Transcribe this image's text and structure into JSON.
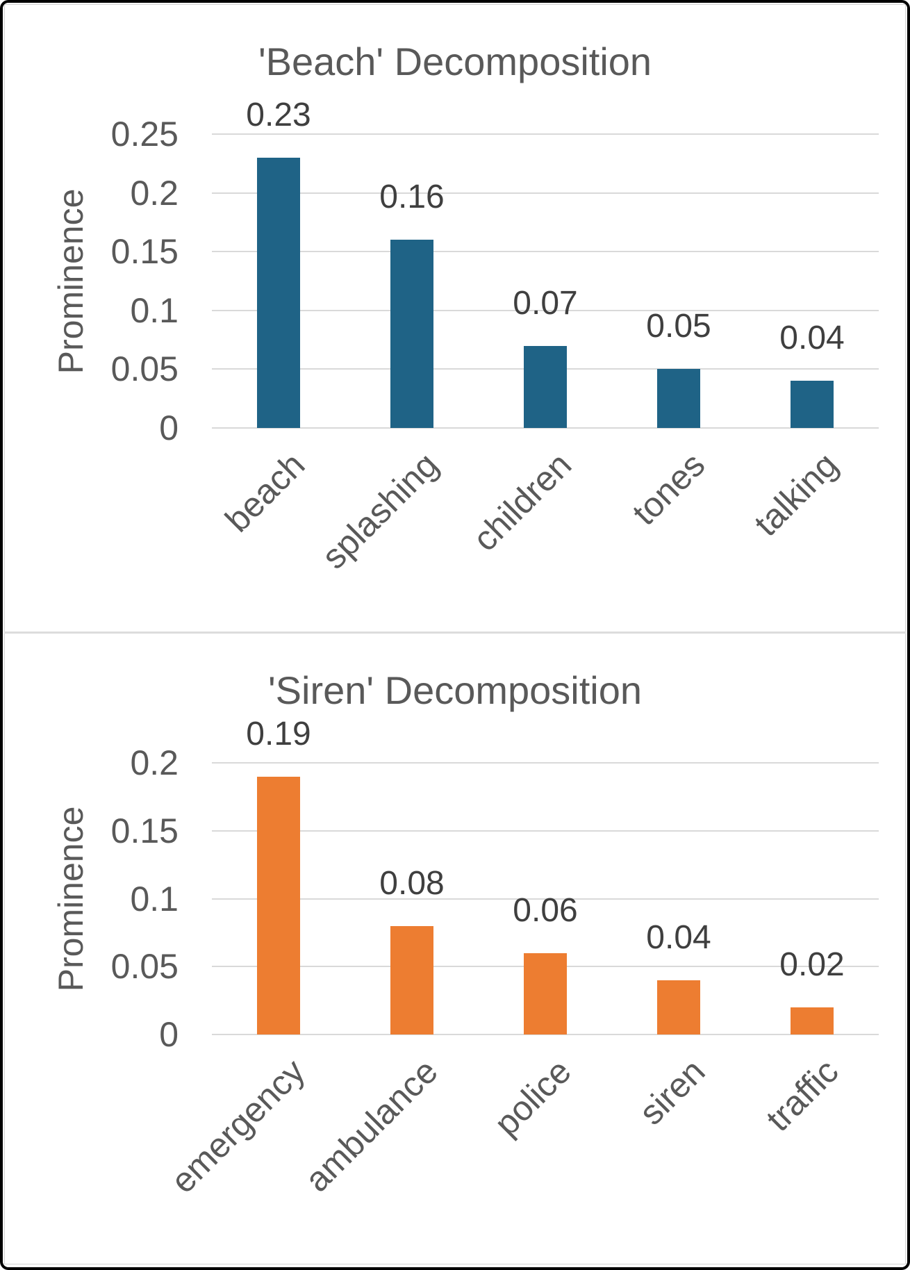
{
  "page": {
    "background": "#ffffff",
    "frame_color": "#000000",
    "panel_border_color": "#d4d4d4",
    "divider_color": "#dcdcdc"
  },
  "style": {
    "title_color": "#595959",
    "tick_color": "#595959",
    "data_label_color": "#3f3f3f",
    "grid_color": "#d9d9d9"
  },
  "chart_data": [
    {
      "type": "bar",
      "title": "'Beach' Decomposition",
      "ylabel": "Prominence",
      "xlabel": "",
      "categories": [
        "beach",
        "splashing",
        "children",
        "tones",
        "talking"
      ],
      "values": [
        0.23,
        0.16,
        0.07,
        0.05,
        0.04
      ],
      "data_labels": [
        "0.23",
        "0.16",
        "0.07",
        "0.05",
        "0.04"
      ],
      "ytick_labels": [
        "0",
        "0.05",
        "0.1",
        "0.15",
        "0.2",
        "0.25"
      ],
      "yticks": [
        0,
        0.05,
        0.1,
        0.15,
        0.2,
        0.25
      ],
      "ylim": [
        0,
        0.25
      ],
      "bar_color": "#1f6386",
      "grid": true,
      "legend": false
    },
    {
      "type": "bar",
      "title": "'Siren' Decomposition",
      "ylabel": "Prominence",
      "xlabel": "",
      "categories": [
        "emergency",
        "ambulance",
        "police",
        "siren",
        "traffic"
      ],
      "values": [
        0.19,
        0.08,
        0.06,
        0.04,
        0.02
      ],
      "data_labels": [
        "0.19",
        "0.08",
        "0.06",
        "0.04",
        "0.02"
      ],
      "ytick_labels": [
        "0",
        "0.05",
        "0.1",
        "0.15",
        "0.2"
      ],
      "yticks": [
        0,
        0.05,
        0.1,
        0.15,
        0.2
      ],
      "ylim": [
        0,
        0.2
      ],
      "bar_color": "#ed7d31",
      "grid": true,
      "legend": false
    }
  ]
}
